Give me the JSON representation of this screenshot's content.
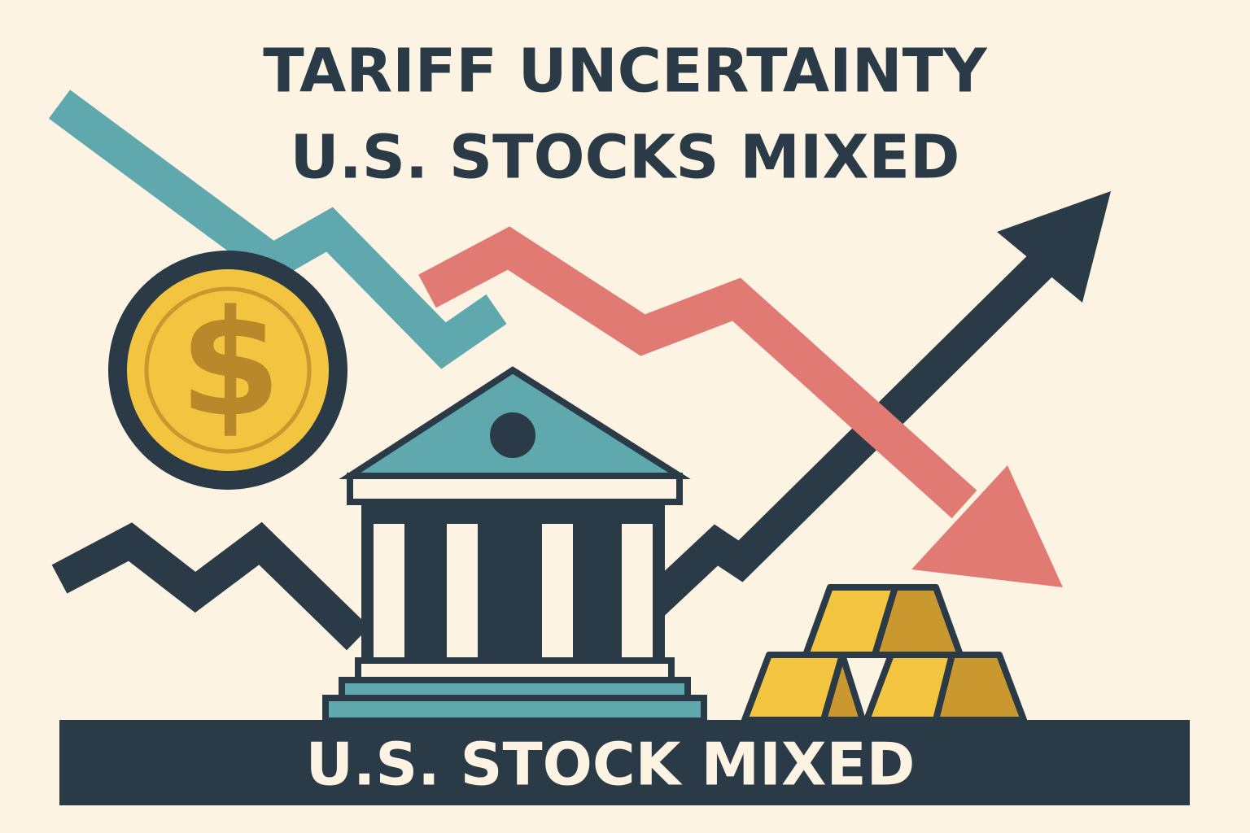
{
  "header": {
    "title_line_1": "TARIFF UNCERTAINTY",
    "title_line_2": "U.S. STOCKS MIXED"
  },
  "coin": {
    "symbol": "$"
  },
  "banner": {
    "text": "U.S. STOCK MIXED"
  }
}
